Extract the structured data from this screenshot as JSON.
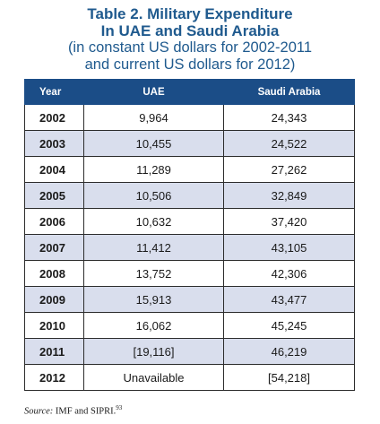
{
  "title": {
    "line1": "Table 2. Military Expenditure",
    "line2": "In UAE and Saudi Arabia",
    "sub1": "(in constant US dollars for 2002-2011",
    "sub2": "and current US dollars for 2012)"
  },
  "table": {
    "headers": [
      "Year",
      "UAE",
      "Saudi Arabia"
    ],
    "rows": [
      {
        "year": "2002",
        "uae": "9,964",
        "sa": "24,343"
      },
      {
        "year": "2003",
        "uae": "10,455",
        "sa": "24,522"
      },
      {
        "year": "2004",
        "uae": "11,289",
        "sa": "27,262"
      },
      {
        "year": "2005",
        "uae": "10,506",
        "sa": "32,849"
      },
      {
        "year": "2006",
        "uae": "10,632",
        "sa": "37,420"
      },
      {
        "year": "2007",
        "uae": "11,412",
        "sa": "43,105"
      },
      {
        "year": "2008",
        "uae": "13,752",
        "sa": "42,306"
      },
      {
        "year": "2009",
        "uae": "15,913",
        "sa": "43,477"
      },
      {
        "year": "2010",
        "uae": "16,062",
        "sa": "45,245"
      },
      {
        "year": "2011",
        "uae": "[19,116]",
        "sa": "46,219"
      },
      {
        "year": "2012",
        "uae": "Unavailable",
        "sa": "[54,218]"
      }
    ]
  },
  "source": {
    "label": "Source:",
    "text": "IMF and SIPRI.",
    "note": "93"
  },
  "colors": {
    "title": "#1f5a8e",
    "header_bg": "#1b4d87",
    "shaded_row": "#d9deed"
  }
}
